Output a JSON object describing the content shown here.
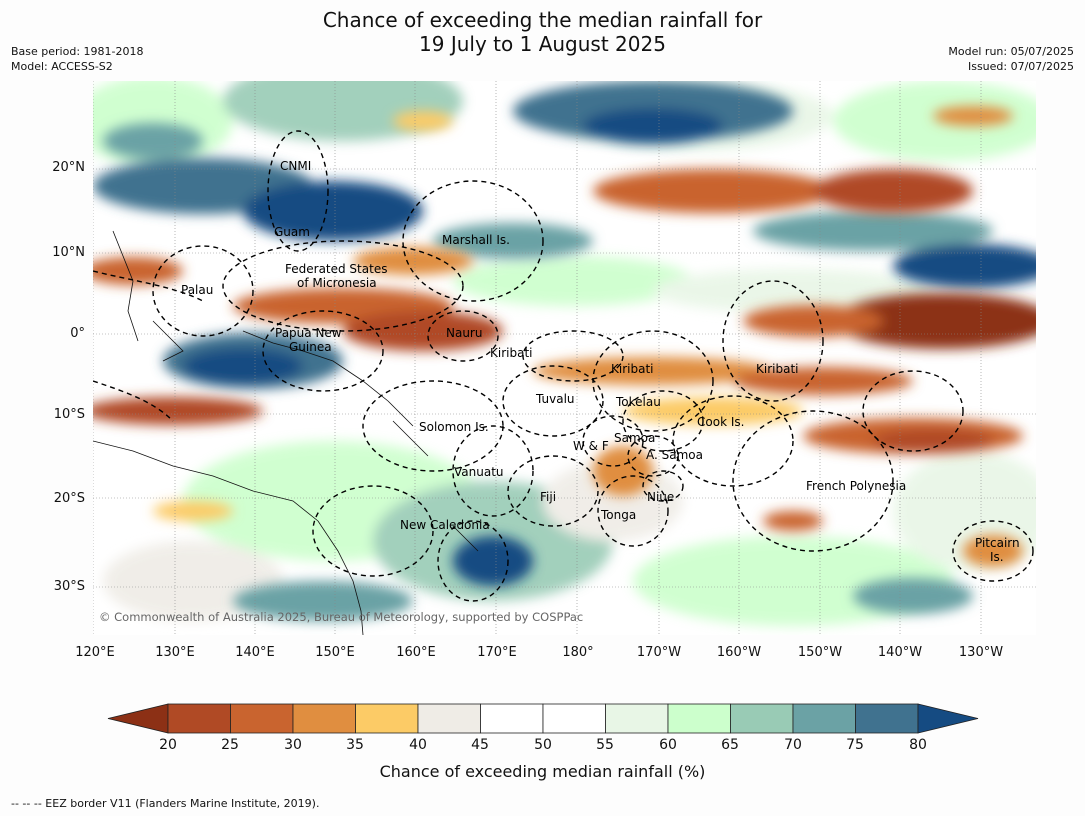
{
  "title": {
    "line1": "Chance of exceeding the median rainfall for",
    "line2": "19 July to 1 August 2025"
  },
  "meta_left": {
    "base_period": "Base period: 1981-2018",
    "model": "Model: ACCESS-S2"
  },
  "meta_right": {
    "model_run": "Model run: 05/07/2025",
    "issued": "Issued: 07/07/2025"
  },
  "lat_labels": [
    "20°N",
    "10°N",
    "0°",
    "10°S",
    "20°S",
    "30°S"
  ],
  "lon_labels": [
    "120°E",
    "130°E",
    "140°E",
    "150°E",
    "160°E",
    "170°E",
    "180°",
    "170°W",
    "160°W",
    "150°W",
    "140°W",
    "130°W"
  ],
  "places": {
    "cnmi": "CNMI",
    "guam": "Guam",
    "marshall": "Marshall Is.",
    "fsm1": "Federated States",
    "fsm2": "of Micronesia",
    "palau": "Palau",
    "png1": "Papua New",
    "png2": "Guinea",
    "nauru": "Nauru",
    "kiribati_w": "Kiribati",
    "kiribati_c": "Kiribati",
    "kiribati_e": "Kiribati",
    "tuvalu": "Tuvalu",
    "tokelau": "Tokelau",
    "cook": "Cook Is.",
    "solomon": "Solomon Is.",
    "samoa": "Samoa",
    "wf": "W & F",
    "asamoa": "A. Samoa",
    "vanuatu": "Vanuatu",
    "fiji": "Fiji",
    "niue": "Niue",
    "tonga": "Tonga",
    "frpoly": "French Polynesia",
    "newcal": "New Caledonia",
    "pitcairn1": "Pitcairn",
    "pitcairn2": "Is."
  },
  "copyright": "© Commonwealth of Australia 2025, Bureau of Meteorology, supported by COSPPac",
  "colorbar": {
    "ticks": [
      "20",
      "25",
      "30",
      "35",
      "40",
      "45",
      "50",
      "55",
      "60",
      "65",
      "70",
      "75",
      "80"
    ],
    "colors": {
      "below20": "#8c3015",
      "c20": "#b04a25",
      "c25": "#c9642f",
      "c30": "#e08e40",
      "c35": "#fccb66",
      "c40": "#efece6",
      "c45": "#ffffff",
      "c50": "#ffffff",
      "c55": "#e8f6e6",
      "c60": "#ccffcc",
      "c65": "#99cbb5",
      "c70": "#6ba2a5",
      "c75": "#40728f",
      "above80": "#154b82"
    },
    "title": "Chance of exceeding median rainfall (%)"
  },
  "footnote": "--  --  -- EEZ border V11 (Flanders Marine Institute, 2019)."
}
